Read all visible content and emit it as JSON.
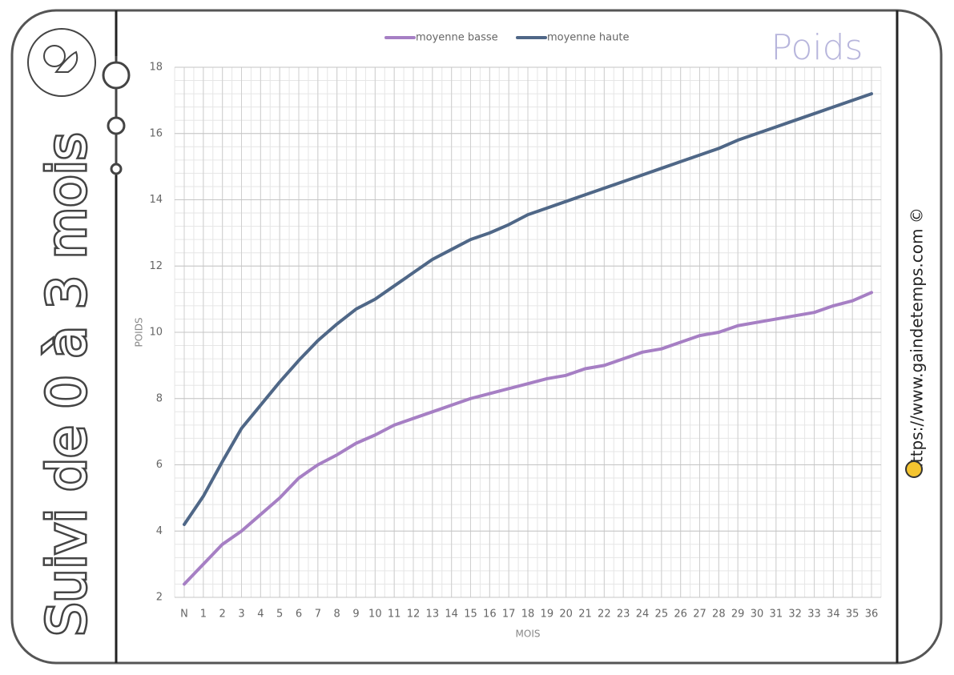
{
  "chart_data": {
    "type": "line",
    "title": "Poids",
    "side_title": "Suivi de 0 à 3 mois",
    "source": "https://www.gaindetemps.com ©",
    "x_label": "MOIS",
    "y_label": "POIDS",
    "categories": [
      "N",
      "1",
      "2",
      "3",
      "4",
      "5",
      "6",
      "7",
      "8",
      "9",
      "10",
      "11",
      "12",
      "13",
      "14",
      "15",
      "16",
      "17",
      "18",
      "19",
      "20",
      "21",
      "22",
      "23",
      "24",
      "25",
      "26",
      "27",
      "28",
      "29",
      "30",
      "31",
      "32",
      "33",
      "34",
      "35",
      "36"
    ],
    "series": [
      {
        "name": "moyenne basse",
        "color": "#a67fc4",
        "values": [
          2.4,
          3.0,
          3.6,
          4.0,
          4.5,
          5.0,
          5.6,
          6.0,
          6.3,
          6.65,
          6.9,
          7.2,
          7.4,
          7.6,
          7.8,
          8.0,
          8.15,
          8.3,
          8.45,
          8.6,
          8.7,
          8.9,
          9.0,
          9.2,
          9.4,
          9.5,
          9.7,
          9.9,
          10.0,
          10.2,
          10.3,
          10.4,
          10.5,
          10.6,
          10.8,
          10.95,
          11.2
        ]
      },
      {
        "name": "moyenne haute",
        "color": "#4f6787",
        "values": [
          4.2,
          5.05,
          6.1,
          7.1,
          7.8,
          8.5,
          9.15,
          9.75,
          10.25,
          10.7,
          11.0,
          11.4,
          11.8,
          12.2,
          12.5,
          12.8,
          13.0,
          13.25,
          13.55,
          13.75,
          13.95,
          14.15,
          14.35,
          14.55,
          14.75,
          14.95,
          15.15,
          15.35,
          15.55,
          15.8,
          16.0,
          16.2,
          16.4,
          16.6,
          16.8,
          17.0,
          17.2
        ]
      }
    ],
    "ylim": [
      2,
      18
    ],
    "yticks": [
      2,
      4,
      6,
      8,
      10,
      12,
      14,
      16,
      18
    ],
    "grid": true
  }
}
